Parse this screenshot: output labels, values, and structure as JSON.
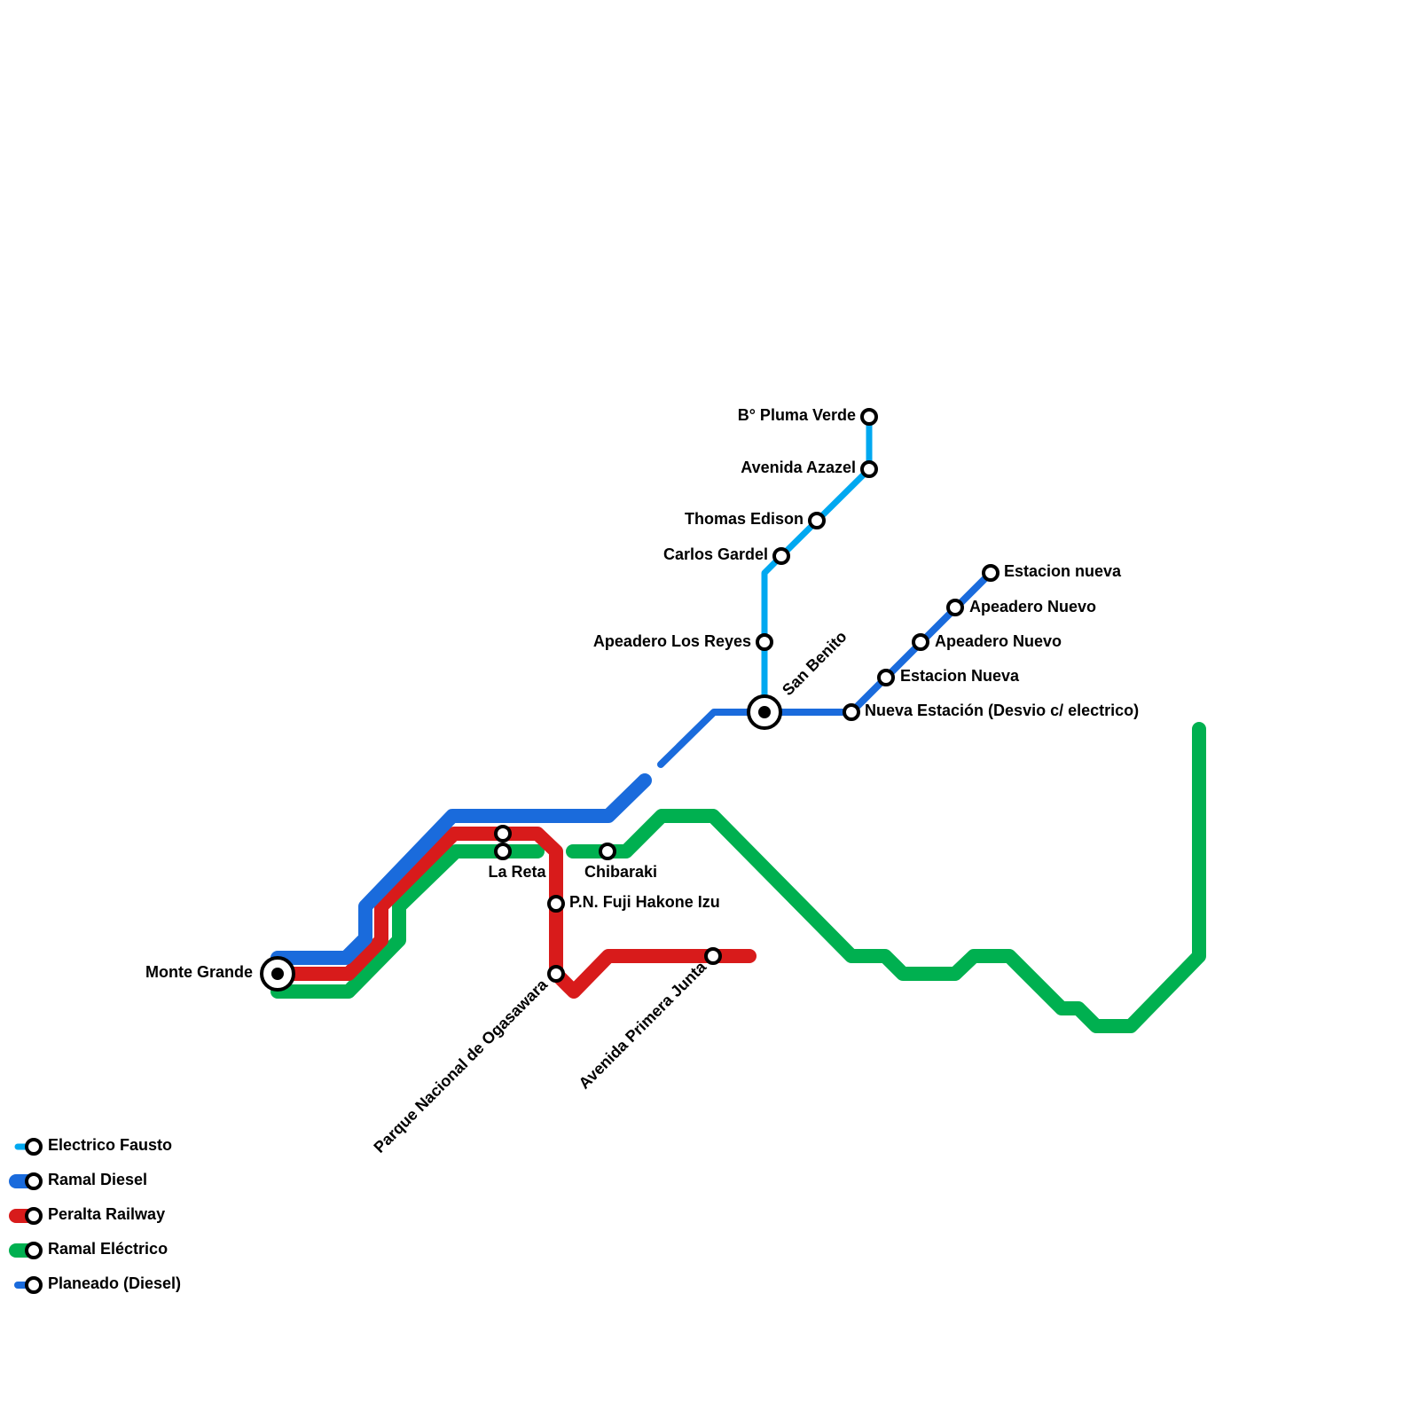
{
  "stations": [
    {
      "label": "Monte Grande"
    },
    {
      "label": "La Reta"
    },
    {
      "label": "Chibaraki"
    },
    {
      "label": "P.N. Fuji Hakone Izu"
    },
    {
      "label": "Parque Nacional de Ogasawara"
    },
    {
      "label": "Avenida Primera Junta"
    },
    {
      "label": "San Benito"
    },
    {
      "label": "Apeadero Los Reyes"
    },
    {
      "label": "Carlos Gardel"
    },
    {
      "label": "Thomas Edison"
    },
    {
      "label": "Avenida Azazel"
    },
    {
      "label": "B° Pluma Verde"
    },
    {
      "label": "Nueva Estación (Desvio c/ electrico)"
    },
    {
      "label": "Estacion Nueva"
    },
    {
      "label": "Apeadero Nuevo"
    },
    {
      "label": "Apeadero Nuevo"
    },
    {
      "label": "Estacion nueva"
    }
  ],
  "legend": [
    {
      "label": "Electrico Fausto"
    },
    {
      "label": "Ramal Diesel"
    },
    {
      "label": "Peralta Railway"
    },
    {
      "label": "Ramal Eléctrico"
    },
    {
      "label": "Planeado (Diesel)"
    }
  ]
}
